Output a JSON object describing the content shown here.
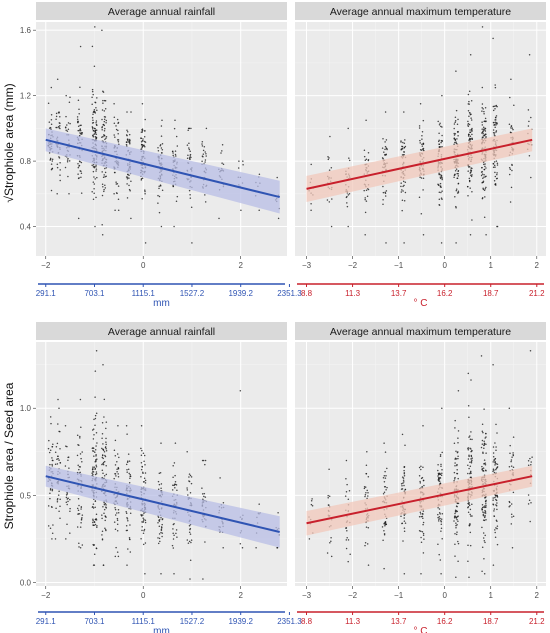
{
  "figure": {
    "y_labels": [
      "√Strophiole area (mm)",
      "Strophiole area / Seed area"
    ],
    "colors": {
      "panel_bg": "#ebebeb",
      "grid_major": "#ffffff",
      "grid_minor": "#f5f5f5",
      "strip_bg": "#d9d9d9",
      "points": "#1a1a1a",
      "rainfall": "#2f54b3",
      "rainfall_band": "#b8bde6",
      "temperature": "#c8202c",
      "temperature_band": "#f2c8bb"
    }
  },
  "chart_data": [
    {
      "type": "scatter",
      "title": "Average annual rainfall",
      "ylabel": "√Strophiole area (mm)",
      "xlim": [
        -2.2,
        2.95
      ],
      "ylim": [
        0.22,
        1.65
      ],
      "x_ticks": [
        -2,
        0,
        2
      ],
      "y_ticks": [
        0.4,
        0.8,
        1.2,
        1.6
      ],
      "secondary_x": {
        "label": "mm",
        "color": "#2f54b3",
        "ticks": [
          -2,
          -1,
          0,
          1,
          2,
          3
        ],
        "tick_labels": [
          "291.1",
          "703.1",
          "1115.1",
          "1527.2",
          "1939.2",
          "2351.3"
        ]
      },
      "fit": {
        "x": [
          -2.0,
          2.8
        ],
        "y": [
          0.93,
          0.58
        ],
        "ci_lower": [
          0.86,
          0.48
        ],
        "ci_upper": [
          1.0,
          0.68
        ],
        "color": "#2f54b3",
        "band_color": "#b8bde6"
      },
      "clusters": [
        {
          "x": -1.9,
          "center": 0.93,
          "spread": 0.11,
          "n": 45,
          "min": 0.62,
          "max": 1.25
        },
        {
          "x": -1.75,
          "center": 0.92,
          "spread": 0.12,
          "n": 40,
          "min": 0.6,
          "max": 1.3
        },
        {
          "x": -1.55,
          "center": 0.9,
          "spread": 0.11,
          "n": 35,
          "min": 0.6,
          "max": 1.2
        },
        {
          "x": -1.3,
          "center": 0.92,
          "spread": 0.13,
          "n": 60,
          "min": 0.45,
          "max": 1.5
        },
        {
          "x": -1.0,
          "center": 0.93,
          "spread": 0.15,
          "n": 110,
          "min": 0.4,
          "max": 1.62
        },
        {
          "x": -0.8,
          "center": 0.92,
          "spread": 0.15,
          "n": 90,
          "min": 0.35,
          "max": 1.6
        },
        {
          "x": -0.55,
          "center": 0.82,
          "spread": 0.12,
          "n": 55,
          "min": 0.5,
          "max": 1.15
        },
        {
          "x": -0.3,
          "center": 0.8,
          "spread": 0.11,
          "n": 60,
          "min": 0.45,
          "max": 1.1
        },
        {
          "x": 0.0,
          "center": 0.8,
          "spread": 0.12,
          "n": 80,
          "min": 0.3,
          "max": 1.15
        },
        {
          "x": 0.35,
          "center": 0.77,
          "spread": 0.1,
          "n": 55,
          "min": 0.4,
          "max": 1.05
        },
        {
          "x": 0.65,
          "center": 0.76,
          "spread": 0.1,
          "n": 45,
          "min": 0.4,
          "max": 1.05
        },
        {
          "x": 0.95,
          "center": 0.75,
          "spread": 0.1,
          "n": 40,
          "min": 0.3,
          "max": 1.0
        },
        {
          "x": 1.25,
          "center": 0.72,
          "spread": 0.1,
          "n": 35,
          "min": 0.2,
          "max": 1.0
        },
        {
          "x": 1.6,
          "center": 0.7,
          "spread": 0.08,
          "n": 20,
          "min": 0.45,
          "max": 0.9
        },
        {
          "x": 2.0,
          "center": 0.66,
          "spread": 0.06,
          "n": 10,
          "min": 0.5,
          "max": 0.8
        },
        {
          "x": 2.35,
          "center": 0.62,
          "spread": 0.05,
          "n": 8,
          "min": 0.5,
          "max": 0.72
        },
        {
          "x": 2.75,
          "center": 0.58,
          "spread": 0.05,
          "n": 8,
          "min": 0.45,
          "max": 0.7
        }
      ]
    },
    {
      "type": "scatter",
      "title": "Average annual maximum temperature",
      "ylabel": "",
      "xlim": [
        -3.25,
        2.2
      ],
      "ylim": [
        0.22,
        1.65
      ],
      "x_ticks": [
        -3,
        -2,
        -1,
        0,
        1,
        2
      ],
      "y_ticks": [
        0.4,
        0.8,
        1.2,
        1.6
      ],
      "secondary_x": {
        "label": "° C",
        "color": "#c8202c",
        "ticks": [
          -3,
          -2,
          -1,
          0,
          1,
          2
        ],
        "tick_labels": [
          "8.8",
          "11.3",
          "13.7",
          "16.2",
          "18.7",
          "21.2"
        ]
      },
      "fit": {
        "x": [
          -3.0,
          1.9
        ],
        "y": [
          0.63,
          0.93
        ],
        "ci_lower": [
          0.55,
          0.86
        ],
        "ci_upper": [
          0.71,
          1.0
        ],
        "color": "#c8202c",
        "band_color": "#f2c8bb"
      },
      "clusters": [
        {
          "x": -2.9,
          "center": 0.64,
          "spread": 0.06,
          "n": 10,
          "min": 0.5,
          "max": 0.78
        },
        {
          "x": -2.5,
          "center": 0.66,
          "spread": 0.1,
          "n": 20,
          "min": 0.4,
          "max": 0.95
        },
        {
          "x": -2.1,
          "center": 0.68,
          "spread": 0.1,
          "n": 25,
          "min": 0.4,
          "max": 1.0
        },
        {
          "x": -1.7,
          "center": 0.72,
          "spread": 0.11,
          "n": 35,
          "min": 0.35,
          "max": 1.05
        },
        {
          "x": -1.3,
          "center": 0.74,
          "spread": 0.11,
          "n": 45,
          "min": 0.3,
          "max": 1.1
        },
        {
          "x": -0.9,
          "center": 0.77,
          "spread": 0.11,
          "n": 55,
          "min": 0.3,
          "max": 1.1
        },
        {
          "x": -0.5,
          "center": 0.79,
          "spread": 0.11,
          "n": 60,
          "min": 0.35,
          "max": 1.15
        },
        {
          "x": -0.1,
          "center": 0.8,
          "spread": 0.12,
          "n": 75,
          "min": 0.3,
          "max": 1.2
        },
        {
          "x": 0.25,
          "center": 0.83,
          "spread": 0.13,
          "n": 90,
          "min": 0.3,
          "max": 1.35
        },
        {
          "x": 0.55,
          "center": 0.86,
          "spread": 0.14,
          "n": 100,
          "min": 0.35,
          "max": 1.45
        },
        {
          "x": 0.85,
          "center": 0.88,
          "spread": 0.15,
          "n": 110,
          "min": 0.35,
          "max": 1.62
        },
        {
          "x": 1.1,
          "center": 0.9,
          "spread": 0.14,
          "n": 80,
          "min": 0.4,
          "max": 1.55
        },
        {
          "x": 1.45,
          "center": 0.9,
          "spread": 0.12,
          "n": 35,
          "min": 0.55,
          "max": 1.3
        },
        {
          "x": 1.85,
          "center": 0.93,
          "spread": 0.1,
          "n": 15,
          "min": 0.7,
          "max": 1.45
        }
      ]
    },
    {
      "type": "scatter",
      "title": "Average annual rainfall",
      "ylabel": "Strophiole area / Seed area",
      "xlim": [
        -2.2,
        2.95
      ],
      "ylim": [
        -0.02,
        1.38
      ],
      "x_ticks": [
        -2,
        0,
        2
      ],
      "y_ticks": [
        0.0,
        0.5,
        1.0
      ],
      "secondary_x": {
        "label": "mm",
        "color": "#2f54b3",
        "ticks": [
          -2,
          -1,
          0,
          1,
          2,
          3
        ],
        "tick_labels": [
          "291.1",
          "703.1",
          "1115.1",
          "1527.2",
          "1939.2",
          "2351.3"
        ]
      },
      "fit": {
        "x": [
          -2.0,
          2.8
        ],
        "y": [
          0.61,
          0.29
        ],
        "ci_lower": [
          0.55,
          0.2
        ],
        "ci_upper": [
          0.67,
          0.38
        ],
        "color": "#2f54b3",
        "band_color": "#b8bde6"
      },
      "clusters": [
        {
          "x": -1.9,
          "center": 0.62,
          "spread": 0.13,
          "n": 45,
          "min": 0.25,
          "max": 0.95
        },
        {
          "x": -1.75,
          "center": 0.62,
          "spread": 0.14,
          "n": 40,
          "min": 0.25,
          "max": 1.05
        },
        {
          "x": -1.55,
          "center": 0.58,
          "spread": 0.12,
          "n": 35,
          "min": 0.25,
          "max": 0.9
        },
        {
          "x": -1.3,
          "center": 0.6,
          "spread": 0.15,
          "n": 60,
          "min": 0.2,
          "max": 1.05
        },
        {
          "x": -1.0,
          "center": 0.6,
          "spread": 0.18,
          "n": 110,
          "min": 0.1,
          "max": 1.33
        },
        {
          "x": -0.8,
          "center": 0.58,
          "spread": 0.18,
          "n": 90,
          "min": 0.1,
          "max": 1.25
        },
        {
          "x": -0.55,
          "center": 0.5,
          "spread": 0.14,
          "n": 55,
          "min": 0.15,
          "max": 0.9
        },
        {
          "x": -0.3,
          "center": 0.48,
          "spread": 0.13,
          "n": 60,
          "min": 0.1,
          "max": 0.9
        },
        {
          "x": 0.0,
          "center": 0.47,
          "spread": 0.13,
          "n": 80,
          "min": 0.05,
          "max": 0.9
        },
        {
          "x": 0.35,
          "center": 0.45,
          "spread": 0.12,
          "n": 55,
          "min": 0.05,
          "max": 0.8
        },
        {
          "x": 0.65,
          "center": 0.44,
          "spread": 0.12,
          "n": 45,
          "min": 0.05,
          "max": 0.8
        },
        {
          "x": 0.95,
          "center": 0.42,
          "spread": 0.11,
          "n": 40,
          "min": 0.02,
          "max": 0.75
        },
        {
          "x": 1.25,
          "center": 0.4,
          "spread": 0.11,
          "n": 35,
          "min": 0.02,
          "max": 0.7
        },
        {
          "x": 1.6,
          "center": 0.38,
          "spread": 0.08,
          "n": 20,
          "min": 0.2,
          "max": 0.6
        },
        {
          "x": 2.0,
          "center": 0.36,
          "spread": 0.1,
          "n": 10,
          "min": 0.2,
          "max": 1.1
        },
        {
          "x": 2.35,
          "center": 0.32,
          "spread": 0.06,
          "n": 8,
          "min": 0.2,
          "max": 0.45
        },
        {
          "x": 2.75,
          "center": 0.3,
          "spread": 0.05,
          "n": 8,
          "min": 0.2,
          "max": 0.4
        }
      ]
    },
    {
      "type": "scatter",
      "title": "Average annual maximum temperature",
      "ylabel": "",
      "xlim": [
        -3.25,
        2.2
      ],
      "ylim": [
        -0.02,
        1.38
      ],
      "x_ticks": [
        -3,
        -2,
        -1,
        0,
        1,
        2
      ],
      "y_ticks": [
        0.0,
        0.5,
        1.0
      ],
      "secondary_x": {
        "label": "° C",
        "color": "#c8202c",
        "ticks": [
          -3,
          -2,
          -1,
          0,
          1,
          2
        ],
        "tick_labels": [
          "8.8",
          "11.3",
          "13.7",
          "16.2",
          "18.7",
          "21.2"
        ]
      },
      "fit": {
        "x": [
          -3.0,
          1.9
        ],
        "y": [
          0.34,
          0.61
        ],
        "ci_lower": [
          0.27,
          0.55
        ],
        "ci_upper": [
          0.41,
          0.67
        ],
        "color": "#c8202c",
        "band_color": "#f2c8bb"
      },
      "clusters": [
        {
          "x": -2.9,
          "center": 0.36,
          "spread": 0.06,
          "n": 10,
          "min": 0.25,
          "max": 0.48
        },
        {
          "x": -2.5,
          "center": 0.38,
          "spread": 0.1,
          "n": 20,
          "min": 0.15,
          "max": 0.65
        },
        {
          "x": -2.1,
          "center": 0.4,
          "spread": 0.11,
          "n": 25,
          "min": 0.12,
          "max": 0.7
        },
        {
          "x": -1.7,
          "center": 0.42,
          "spread": 0.12,
          "n": 35,
          "min": 0.1,
          "max": 0.75
        },
        {
          "x": -1.3,
          "center": 0.44,
          "spread": 0.12,
          "n": 45,
          "min": 0.08,
          "max": 0.8
        },
        {
          "x": -0.9,
          "center": 0.46,
          "spread": 0.13,
          "n": 55,
          "min": 0.05,
          "max": 0.85
        },
        {
          "x": -0.5,
          "center": 0.48,
          "spread": 0.13,
          "n": 60,
          "min": 0.05,
          "max": 0.9
        },
        {
          "x": -0.1,
          "center": 0.5,
          "spread": 0.14,
          "n": 75,
          "min": 0.05,
          "max": 1.0
        },
        {
          "x": 0.25,
          "center": 0.52,
          "spread": 0.15,
          "n": 90,
          "min": 0.03,
          "max": 1.1
        },
        {
          "x": 0.55,
          "center": 0.55,
          "spread": 0.16,
          "n": 100,
          "min": 0.03,
          "max": 1.2
        },
        {
          "x": 0.85,
          "center": 0.57,
          "spread": 0.17,
          "n": 110,
          "min": 0.05,
          "max": 1.3
        },
        {
          "x": 1.1,
          "center": 0.58,
          "spread": 0.16,
          "n": 80,
          "min": 0.1,
          "max": 1.25
        },
        {
          "x": 1.45,
          "center": 0.58,
          "spread": 0.13,
          "n": 35,
          "min": 0.2,
          "max": 1.0
        },
        {
          "x": 1.85,
          "center": 0.6,
          "spread": 0.12,
          "n": 15,
          "min": 0.35,
          "max": 1.33
        }
      ]
    }
  ]
}
